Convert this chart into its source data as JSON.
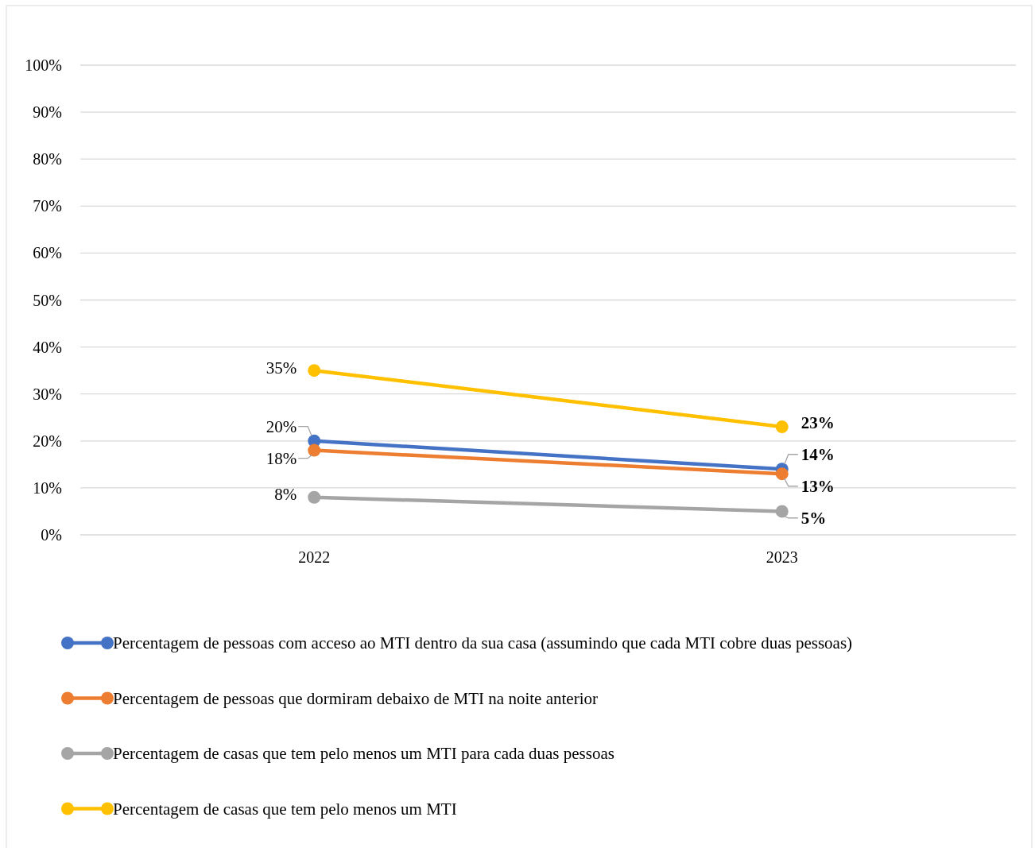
{
  "chart_data": {
    "type": "line",
    "categories": [
      "2022",
      "2023"
    ],
    "series": [
      {
        "name": "Percentagem de pessoas com acceso ao MTI dentro da sua casa (assumindo que cada MTI cobre duas pessoas)",
        "color": "#4472c4",
        "values": [
          20,
          14
        ],
        "value_labels": [
          "20%",
          "14%"
        ]
      },
      {
        "name": "Percentagem de pessoas que dormiram debaixo de MTI na noite anterior",
        "color": "#ed7d31",
        "values": [
          18,
          13
        ],
        "value_labels": [
          "18%",
          "13%"
        ]
      },
      {
        "name": "Percentagem de casas que tem pelo menos um MTI para cada duas pessoas",
        "color": "#a5a5a5",
        "values": [
          8,
          5
        ],
        "value_labels": [
          "8%",
          "5%"
        ]
      },
      {
        "name": "Percentagem de casas que tem pelo menos um MTI",
        "color": "#ffc000",
        "values": [
          35,
          23
        ],
        "value_labels": [
          "35%",
          "23%"
        ]
      }
    ],
    "ylim": [
      0,
      100
    ],
    "yticks": [
      {
        "value": 0,
        "label": "0%"
      },
      {
        "value": 10,
        "label": "10%"
      },
      {
        "value": 20,
        "label": "20%"
      },
      {
        "value": 30,
        "label": "30%"
      },
      {
        "value": 40,
        "label": "40%"
      },
      {
        "value": 50,
        "label": "50%"
      },
      {
        "value": 60,
        "label": "60%"
      },
      {
        "value": 70,
        "label": "70%"
      },
      {
        "value": 80,
        "label": "80%"
      },
      {
        "value": 90,
        "label": "90%"
      },
      {
        "value": 100,
        "label": "100%"
      }
    ],
    "grid": "y",
    "legend": "bottom",
    "marker": "circle",
    "line_style": "solid"
  }
}
